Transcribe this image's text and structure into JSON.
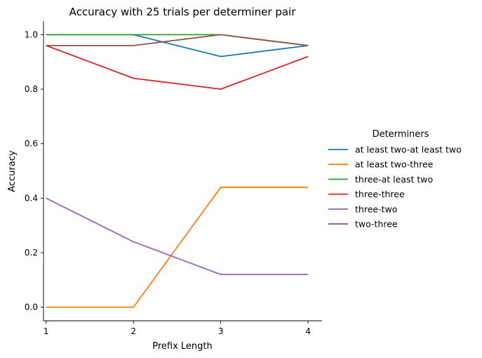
{
  "chart_data": {
    "type": "line",
    "title": "Accuracy with 25 trials per determiner pair",
    "xlabel": "Prefix Length",
    "ylabel": "Accuracy",
    "x": [
      1,
      2,
      3,
      4
    ],
    "xlim": [
      0.97,
      4.16
    ],
    "ylim": [
      -0.05,
      1.05
    ],
    "xticks": [
      "1",
      "2",
      "3",
      "4"
    ],
    "yticks": [
      "0.0",
      "0.2",
      "0.4",
      "0.6",
      "0.8",
      "1.0"
    ],
    "ytick_values": [
      0.0,
      0.2,
      0.4,
      0.6,
      0.8,
      1.0
    ],
    "grid": false,
    "legend": {
      "title": "Determiners",
      "placement": "right, outside plot"
    },
    "series": [
      {
        "name": "at least two-at least two",
        "color": "#1f77b4",
        "values": [
          1.0,
          1.0,
          0.92,
          0.96
        ]
      },
      {
        "name": "at least two-three",
        "color": "#ff7f0e",
        "values": [
          0.0,
          0.0,
          0.44,
          0.44
        ]
      },
      {
        "name": "three-at least two",
        "color": "#2ca02c",
        "values": [
          1.0,
          1.0,
          1.0,
          0.96
        ]
      },
      {
        "name": "three-three",
        "color": "#d62728",
        "values": [
          0.96,
          0.84,
          0.8,
          0.92
        ]
      },
      {
        "name": "three-two",
        "color": "#9467bd",
        "values": [
          0.4,
          0.24,
          0.12,
          0.12
        ]
      },
      {
        "name": "two-three",
        "color": "#8c564b",
        "values": [
          0.96,
          0.96,
          1.0,
          0.96
        ]
      }
    ]
  }
}
